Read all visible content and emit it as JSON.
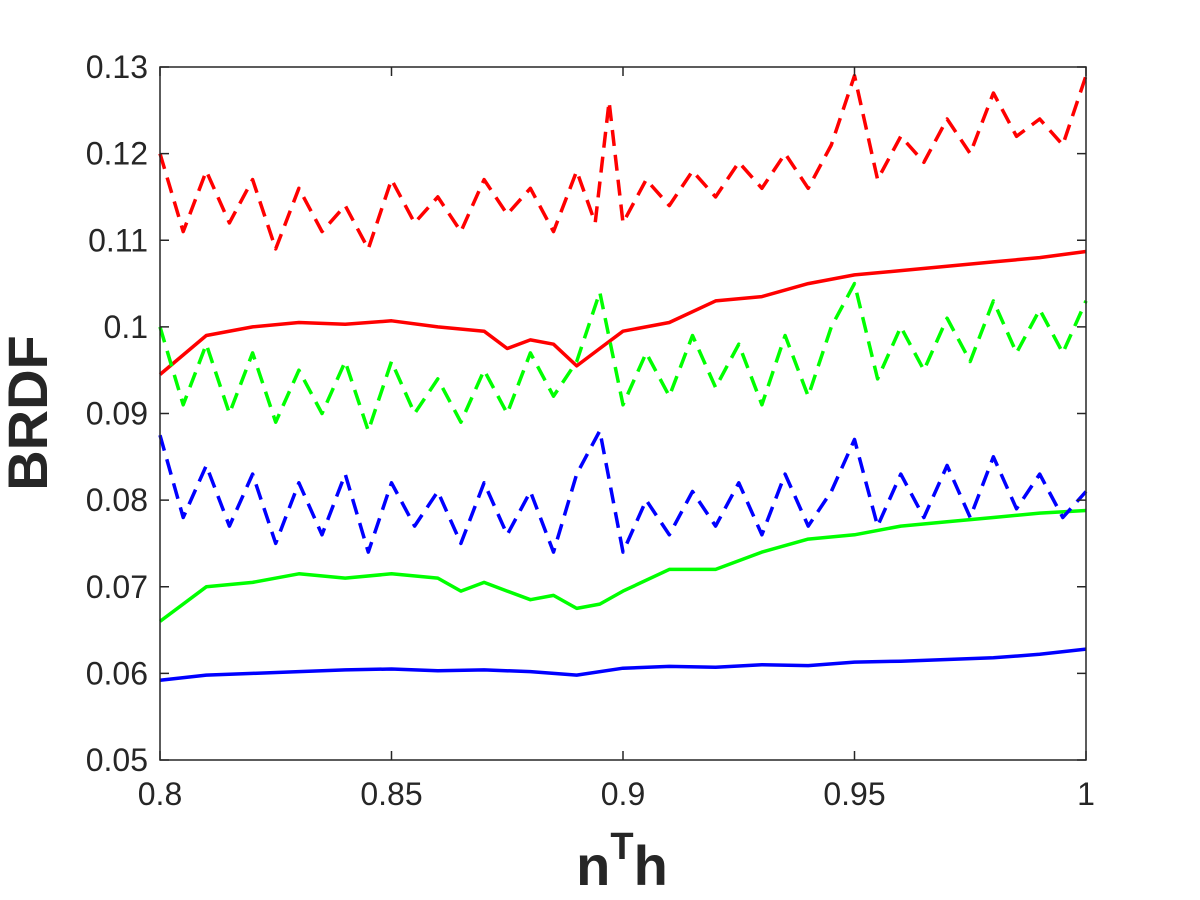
{
  "chart_data": {
    "type": "line",
    "title": "",
    "xlabel": "n",
    "xlabel_sup": "T",
    "xlabel_sub": "h",
    "ylabel": "BRDF",
    "xlim": [
      0.8,
      1.0
    ],
    "ylim": [
      0.05,
      0.13
    ],
    "xticks": [
      "0.8",
      "0.85",
      "0.9",
      "0.95",
      "1"
    ],
    "yticks": [
      "0.05",
      "0.06",
      "0.07",
      "0.08",
      "0.09",
      "0.1",
      "0.11",
      "0.12",
      "0.13"
    ],
    "grid": false,
    "legend": "none",
    "series": [
      {
        "color": "#ff0000",
        "style": "solid",
        "x": [
          0.8,
          0.81,
          0.82,
          0.83,
          0.84,
          0.85,
          0.86,
          0.87,
          0.875,
          0.88,
          0.885,
          0.89,
          0.895,
          0.9,
          0.91,
          0.92,
          0.93,
          0.94,
          0.95,
          0.96,
          0.97,
          0.98,
          0.99,
          1.0
        ],
        "y": [
          0.0945,
          0.099,
          0.1,
          0.1005,
          0.1003,
          0.1007,
          0.1,
          0.0995,
          0.0975,
          0.0985,
          0.098,
          0.0955,
          0.0975,
          0.0995,
          0.1005,
          0.103,
          0.1035,
          0.105,
          0.106,
          0.1065,
          0.107,
          0.1075,
          0.108,
          0.1087
        ]
      },
      {
        "color": "#ff0000",
        "style": "dashed",
        "x": [
          0.8,
          0.805,
          0.81,
          0.815,
          0.82,
          0.825,
          0.83,
          0.835,
          0.84,
          0.845,
          0.85,
          0.855,
          0.86,
          0.865,
          0.87,
          0.875,
          0.88,
          0.885,
          0.89,
          0.894,
          0.897,
          0.9,
          0.905,
          0.91,
          0.915,
          0.92,
          0.925,
          0.93,
          0.935,
          0.94,
          0.945,
          0.95,
          0.955,
          0.96,
          0.965,
          0.97,
          0.975,
          0.98,
          0.985,
          0.99,
          0.995,
          1.0
        ],
        "y": [
          0.12,
          0.111,
          0.118,
          0.112,
          0.117,
          0.109,
          0.116,
          0.111,
          0.114,
          0.109,
          0.117,
          0.112,
          0.115,
          0.111,
          0.117,
          0.113,
          0.116,
          0.111,
          0.118,
          0.112,
          0.126,
          0.112,
          0.117,
          0.114,
          0.118,
          0.115,
          0.119,
          0.116,
          0.12,
          0.116,
          0.121,
          0.129,
          0.117,
          0.122,
          0.119,
          0.124,
          0.12,
          0.127,
          0.122,
          0.124,
          0.121,
          0.129
        ]
      },
      {
        "color": "#00ff00",
        "style": "solid",
        "x": [
          0.8,
          0.81,
          0.82,
          0.83,
          0.84,
          0.85,
          0.86,
          0.865,
          0.87,
          0.875,
          0.88,
          0.885,
          0.89,
          0.895,
          0.9,
          0.91,
          0.92,
          0.93,
          0.94,
          0.95,
          0.96,
          0.97,
          0.98,
          0.99,
          1.0
        ],
        "y": [
          0.066,
          0.07,
          0.0705,
          0.0715,
          0.071,
          0.0715,
          0.071,
          0.0695,
          0.0705,
          0.0695,
          0.0685,
          0.069,
          0.0675,
          0.068,
          0.0695,
          0.072,
          0.072,
          0.074,
          0.0755,
          0.076,
          0.077,
          0.0775,
          0.078,
          0.0785,
          0.0788
        ]
      },
      {
        "color": "#00ff00",
        "style": "dashed",
        "x": [
          0.8,
          0.805,
          0.81,
          0.815,
          0.82,
          0.825,
          0.83,
          0.835,
          0.84,
          0.845,
          0.85,
          0.855,
          0.86,
          0.865,
          0.87,
          0.875,
          0.88,
          0.885,
          0.89,
          0.895,
          0.9,
          0.905,
          0.91,
          0.915,
          0.92,
          0.925,
          0.93,
          0.935,
          0.94,
          0.945,
          0.95,
          0.955,
          0.96,
          0.965,
          0.97,
          0.975,
          0.98,
          0.985,
          0.99,
          0.995,
          1.0
        ],
        "y": [
          0.1,
          0.091,
          0.098,
          0.09,
          0.097,
          0.089,
          0.095,
          0.09,
          0.096,
          0.088,
          0.096,
          0.09,
          0.094,
          0.089,
          0.095,
          0.09,
          0.097,
          0.092,
          0.096,
          0.104,
          0.091,
          0.097,
          0.092,
          0.099,
          0.093,
          0.098,
          0.091,
          0.099,
          0.092,
          0.1,
          0.105,
          0.094,
          0.1,
          0.095,
          0.101,
          0.096,
          0.103,
          0.097,
          0.102,
          0.097,
          0.103
        ]
      },
      {
        "color": "#0000ff",
        "style": "solid",
        "x": [
          0.8,
          0.81,
          0.82,
          0.83,
          0.84,
          0.85,
          0.86,
          0.87,
          0.88,
          0.89,
          0.9,
          0.91,
          0.92,
          0.93,
          0.94,
          0.95,
          0.96,
          0.97,
          0.98,
          0.99,
          1.0
        ],
        "y": [
          0.0592,
          0.0598,
          0.06,
          0.0602,
          0.0604,
          0.0605,
          0.0603,
          0.0604,
          0.0602,
          0.0598,
          0.0606,
          0.0608,
          0.0607,
          0.061,
          0.0609,
          0.0613,
          0.0614,
          0.0616,
          0.0618,
          0.0622,
          0.0628
        ]
      },
      {
        "color": "#0000ff",
        "style": "dashed",
        "x": [
          0.8,
          0.805,
          0.81,
          0.815,
          0.82,
          0.825,
          0.83,
          0.835,
          0.84,
          0.845,
          0.85,
          0.855,
          0.86,
          0.865,
          0.87,
          0.875,
          0.88,
          0.885,
          0.89,
          0.895,
          0.9,
          0.905,
          0.91,
          0.915,
          0.92,
          0.925,
          0.93,
          0.935,
          0.94,
          0.945,
          0.95,
          0.955,
          0.96,
          0.965,
          0.97,
          0.975,
          0.98,
          0.985,
          0.99,
          0.995,
          1.0
        ],
        "y": [
          0.0875,
          0.078,
          0.084,
          0.077,
          0.083,
          0.075,
          0.082,
          0.076,
          0.083,
          0.074,
          0.082,
          0.077,
          0.081,
          0.075,
          0.082,
          0.076,
          0.081,
          0.074,
          0.083,
          0.088,
          0.074,
          0.08,
          0.076,
          0.081,
          0.077,
          0.082,
          0.076,
          0.083,
          0.077,
          0.081,
          0.087,
          0.077,
          0.083,
          0.078,
          0.084,
          0.078,
          0.085,
          0.079,
          0.083,
          0.078,
          0.081
        ]
      }
    ]
  }
}
